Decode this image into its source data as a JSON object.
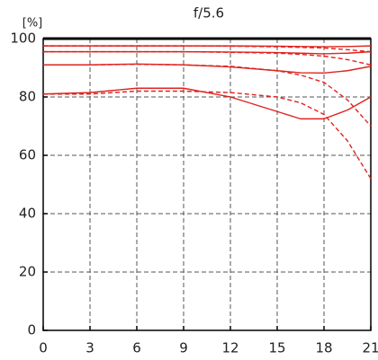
{
  "chart_data": {
    "type": "line",
    "title": "f/5.6",
    "ylabel": "[%]",
    "x": [
      0,
      3,
      6,
      9,
      12,
      15,
      16.5,
      18,
      19.5,
      21
    ],
    "xlim": [
      0,
      21
    ],
    "xticks": [
      0,
      3,
      6,
      9,
      12,
      15,
      18,
      21
    ],
    "ylim": [
      0,
      100
    ],
    "yticks": [
      0,
      20,
      40,
      60,
      80,
      100
    ],
    "grid": true,
    "series": [
      {
        "color": "#e0231f",
        "style": "solid",
        "values": [
          97.5,
          97.5,
          97.5,
          97.5,
          97.5,
          97.4,
          97.3,
          97.2,
          97.3,
          97.5
        ]
      },
      {
        "color": "#e0231f",
        "style": "dashed",
        "values": [
          97.5,
          97.5,
          97.5,
          97.5,
          97.4,
          97.2,
          97,
          96.8,
          96.2,
          95.5
        ]
      },
      {
        "color": "#e0231f",
        "style": "solid",
        "values": [
          95.5,
          95.5,
          95.5,
          95.5,
          95.4,
          95.2,
          95,
          94.8,
          95,
          95.5
        ]
      },
      {
        "color": "#e0231f",
        "style": "dashed",
        "values": [
          95.5,
          95.5,
          95.5,
          95.5,
          95.3,
          95,
          94.6,
          94,
          92.8,
          91
        ]
      },
      {
        "color": "#e0231f",
        "style": "solid",
        "values": [
          91,
          91,
          91.3,
          91,
          90.3,
          89,
          88.3,
          88.2,
          89,
          90.5
        ]
      },
      {
        "color": "#e0231f",
        "style": "dashed",
        "values": [
          91,
          91,
          91.2,
          91,
          90.5,
          89,
          87.5,
          85,
          79,
          70
        ]
      },
      {
        "color": "#e0231f",
        "style": "solid",
        "values": [
          81,
          81.5,
          83,
          83,
          80,
          75,
          72.5,
          72.5,
          75.5,
          80
        ]
      },
      {
        "color": "#e0231f",
        "style": "dashed",
        "values": [
          81,
          81,
          82,
          82,
          81.5,
          80,
          78,
          74,
          65,
          52
        ]
      }
    ]
  }
}
